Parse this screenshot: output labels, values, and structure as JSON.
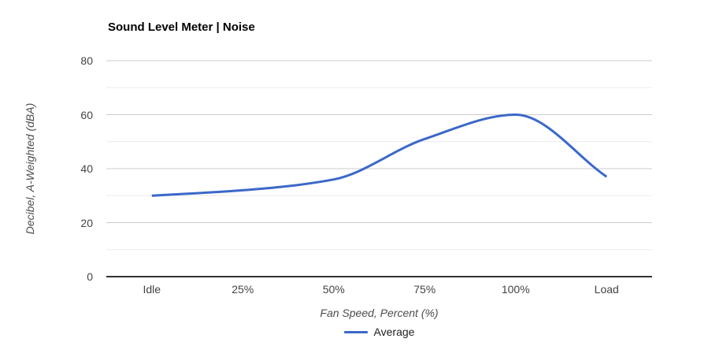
{
  "chart_data": {
    "type": "line",
    "title": "Sound Level Meter | Noise",
    "xlabel": "Fan Speed, Percent (%)",
    "ylabel": "Decibel, A-Weighted (dBA)",
    "categories": [
      "Idle",
      "25%",
      "50%",
      "75%",
      "100%",
      "Load"
    ],
    "series": [
      {
        "name": "Average",
        "color": "#3b68c9",
        "values": [
          30,
          32,
          36,
          51,
          60,
          37
        ]
      }
    ],
    "ylim": [
      0,
      80
    ],
    "yticks": [
      0,
      20,
      40,
      60,
      80
    ],
    "minor_ticks": [
      10,
      30,
      50,
      70
    ],
    "grid": true,
    "curve": "smooth",
    "legend_position": "bottom",
    "colors": {
      "series_blue": "#3b68c9",
      "major_gridline": "#cccccc",
      "minor_gridline": "#ebebeb",
      "baseline": "#333333",
      "tick_text": "#444444",
      "axis_title_text": "#4d4d4d",
      "title_text": "#000000",
      "background": "#ffffff"
    }
  }
}
